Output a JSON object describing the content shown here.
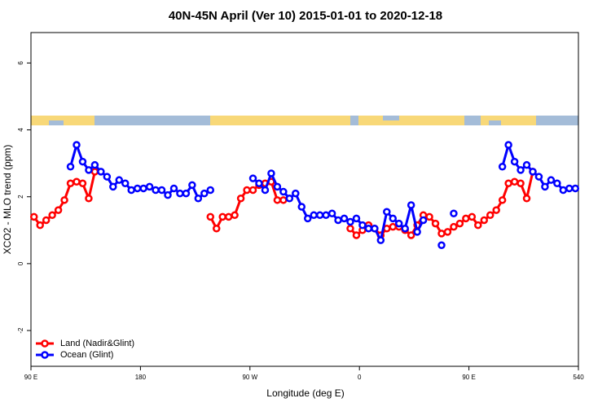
{
  "chart_data": {
    "type": "line",
    "title": "40N-45N April (Ver 10)   2015-01-01 to 2020-12-18",
    "x_label": "Longitude (deg E)",
    "y_label": "XCO2 - MLO trend (ppm)",
    "x": [
      92.5,
      97.5,
      102.5,
      107.5,
      112.5,
      117.5,
      122.5,
      127.5,
      132.5,
      137.5,
      142.5,
      147.5,
      152.5,
      157.5,
      162.5,
      167.5,
      172.5,
      177.5,
      182.5,
      187.5,
      192.5,
      197.5,
      202.5,
      207.5,
      212.5,
      217.5,
      222.5,
      227.5,
      232.5,
      237.5,
      242.5,
      247.5,
      252.5,
      257.5,
      262.5,
      267.5,
      272.5,
      277.5,
      282.5,
      287.5,
      292.5,
      297.5,
      302.5,
      307.5,
      312.5,
      317.5,
      322.5,
      327.5,
      332.5,
      337.5,
      342.5,
      347.5,
      352.5,
      357.5,
      362.5,
      367.5,
      372.5,
      377.5,
      382.5,
      387.5,
      392.5,
      397.5,
      402.5,
      407.5,
      412.5,
      417.5,
      422.5,
      427.5,
      432.5,
      437.5,
      442.5,
      447.5,
      452.5,
      457.5,
      462.5,
      467.5,
      472.5,
      477.5,
      482.5,
      487.5,
      492.5,
      497.5,
      502.5,
      507.5,
      512.5,
      517.5,
      522.5,
      527.5,
      532.5,
      537.5
    ],
    "series": [
      {
        "name": "Land (Nadir&Glint)",
        "color": "#ff0000",
        "values": [
          1.4,
          1.15,
          1.3,
          1.45,
          1.6,
          1.9,
          2.4,
          2.45,
          2.4,
          1.95,
          2.75,
          null,
          null,
          null,
          null,
          null,
          null,
          null,
          null,
          null,
          null,
          null,
          null,
          null,
          null,
          null,
          null,
          null,
          null,
          1.4,
          1.05,
          1.4,
          1.4,
          1.45,
          1.95,
          2.2,
          2.2,
          2.35,
          2.4,
          2.45,
          1.9,
          1.9,
          null,
          null,
          null,
          null,
          null,
          null,
          null,
          null,
          null,
          null,
          1.05,
          0.85,
          1.0,
          1.15,
          1.05,
          0.85,
          1.05,
          1.1,
          1.1,
          1.0,
          0.85,
          1.15,
          1.45,
          1.4,
          1.2,
          0.9,
          0.95,
          1.1,
          1.2,
          1.35,
          1.4,
          1.15,
          1.3,
          1.45,
          1.6,
          1.9,
          2.4,
          2.45,
          2.4,
          1.95,
          2.75,
          null,
          null,
          null,
          null,
          null,
          null,
          null
        ]
      },
      {
        "name": "Ocean (Glint)",
        "color": "#0000ff",
        "values": [
          null,
          null,
          null,
          null,
          null,
          null,
          2.9,
          3.55,
          3.05,
          2.8,
          2.95,
          2.75,
          2.6,
          2.3,
          2.5,
          2.4,
          2.2,
          2.25,
          2.25,
          2.3,
          2.2,
          2.2,
          2.05,
          2.25,
          2.1,
          2.1,
          2.35,
          1.95,
          2.1,
          2.2,
          null,
          null,
          null,
          null,
          null,
          null,
          2.55,
          2.4,
          2.2,
          2.7,
          2.3,
          2.15,
          1.95,
          2.1,
          1.7,
          1.35,
          1.45,
          1.45,
          1.45,
          1.5,
          1.3,
          1.35,
          1.25,
          1.35,
          1.15,
          1.05,
          1.05,
          0.7,
          1.55,
          1.35,
          1.2,
          1.05,
          1.75,
          0.95,
          1.3,
          null,
          null,
          0.55,
          null,
          1.5,
          null,
          null,
          null,
          null,
          null,
          null,
          null,
          2.9,
          3.55,
          3.05,
          2.8,
          2.95,
          2.75,
          2.6,
          2.3,
          2.5,
          2.4,
          2.2,
          2.25,
          2.25
        ]
      }
    ],
    "xlim": [
      90,
      540
    ],
    "xticks": [
      {
        "value": 90,
        "label": "90 E"
      },
      180,
      {
        "value": 270,
        "label": "90 W"
      },
      {
        "value": 360,
        "label": "0"
      },
      {
        "value": 450,
        "label": "90 E"
      },
      540
    ],
    "ylim": [
      -3.07,
      6.91
    ],
    "yticks": [
      -2,
      0,
      2,
      4,
      6
    ],
    "legend": "bottom-left"
  }
}
